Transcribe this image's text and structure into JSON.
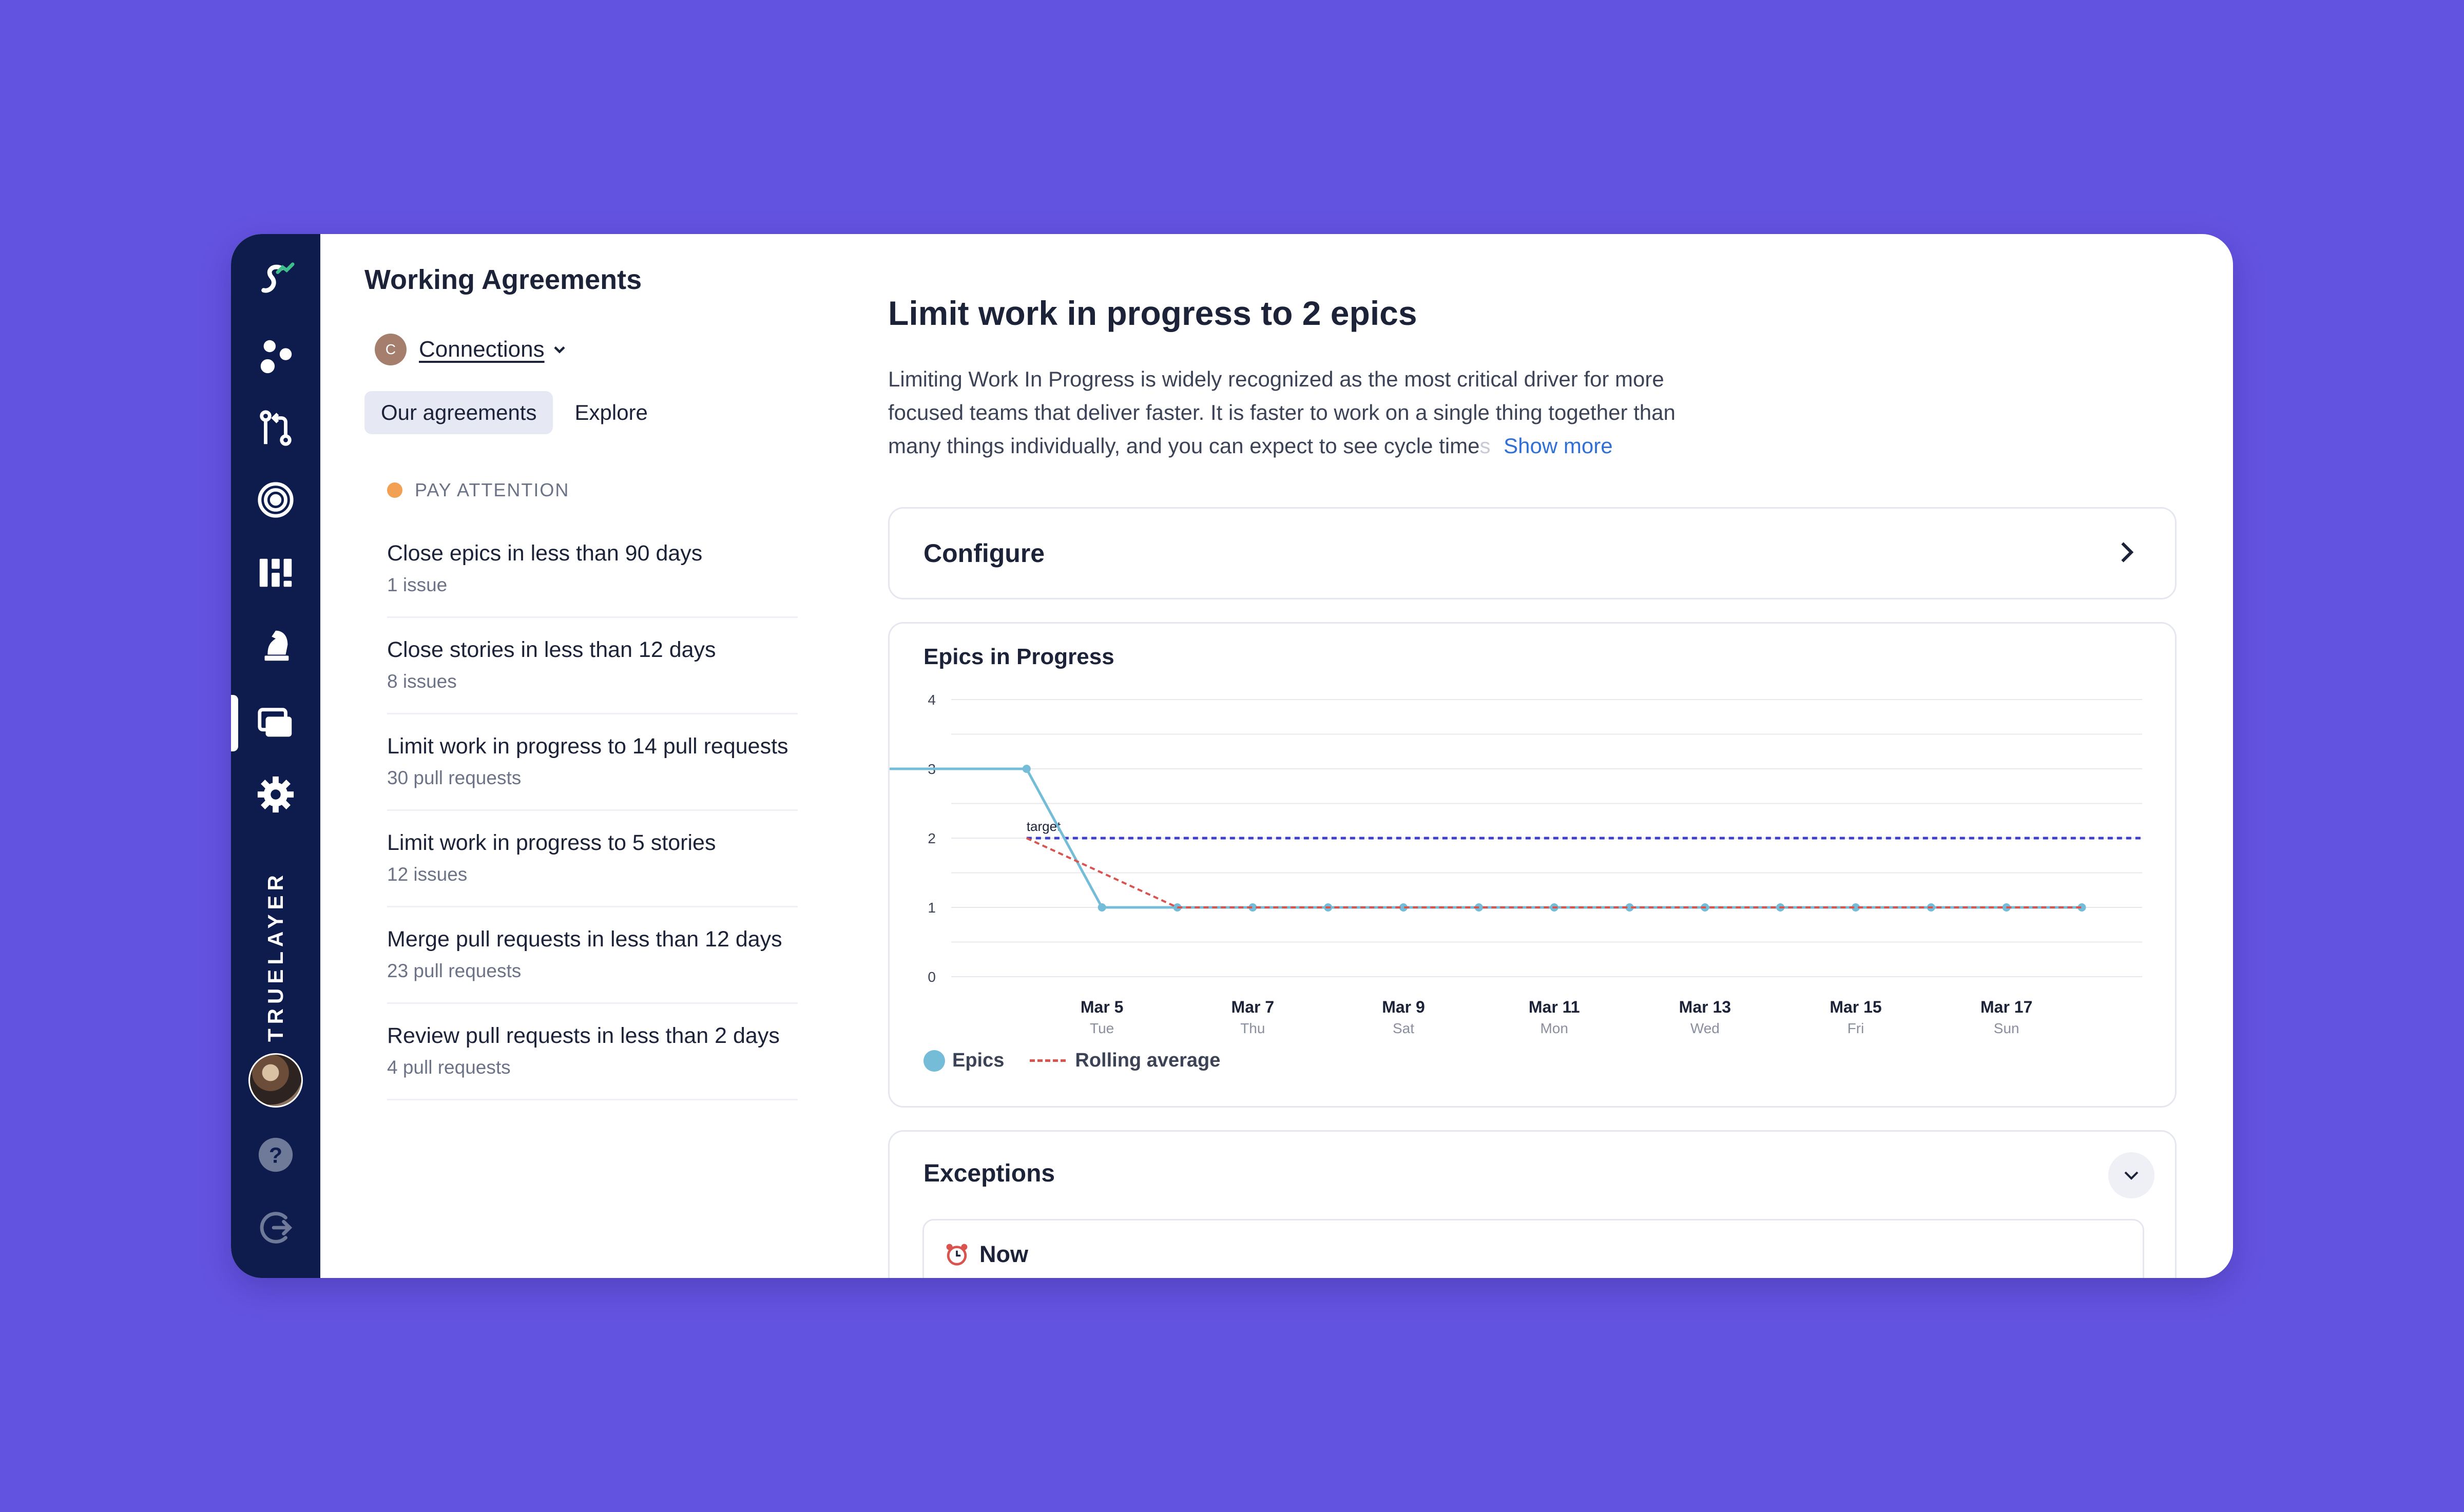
{
  "rail": {
    "brand": "TRUELAYER",
    "icons": [
      "logo-icon",
      "metrics-icon",
      "pull-request-icon",
      "target-icon",
      "board-icon",
      "chess-knight-icon",
      "working-agreements-icon",
      "gear-icon"
    ],
    "bottom_icons": [
      "help-icon",
      "logout-icon"
    ]
  },
  "list": {
    "title": "Working Agreements",
    "team_initial": "C",
    "team_name": "Connections",
    "tabs": [
      {
        "label": "Our agreements",
        "active": true
      },
      {
        "label": "Explore",
        "active": false
      }
    ],
    "section_label": "PAY ATTENTION",
    "items": [
      {
        "title": "Close epics in less than 90 days",
        "sub": "1 issue"
      },
      {
        "title": "Close stories in less than 12 days",
        "sub": "8 issues"
      },
      {
        "title": "Limit work in progress to 14 pull requests",
        "sub": "30 pull requests"
      },
      {
        "title": "Limit work in progress to 5 stories",
        "sub": "12 issues"
      },
      {
        "title": "Merge pull requests in less than 12 days",
        "sub": "23 pull requests"
      },
      {
        "title": "Review pull requests in less than 2 days",
        "sub": "4 pull requests"
      }
    ]
  },
  "main": {
    "title": "Limit work in progress to 2 epics",
    "desc_main": "Limiting Work In Progress is widely recognized as the most critical driver for more focused teams that deliver faster. It is faster to work on a single thing together than many things individually, and you can expect to see cycle time",
    "desc_fade": "s",
    "show_more": "Show more",
    "configure_label": "Configure",
    "exceptions_label": "Exceptions",
    "now_label": "Now"
  },
  "chart_data": {
    "type": "line",
    "title": "Epics in Progress",
    "ylim": [
      0,
      4
    ],
    "yticks": [
      0,
      1,
      2,
      3,
      4
    ],
    "x_tick_labels": [
      {
        "date": "Mar 5",
        "day": "Tue"
      },
      {
        "date": "Mar 7",
        "day": "Thu"
      },
      {
        "date": "Mar 9",
        "day": "Sat"
      },
      {
        "date": "Mar 11",
        "day": "Mon"
      },
      {
        "date": "Mar 13",
        "day": "Wed"
      },
      {
        "date": "Mar 15",
        "day": "Fri"
      },
      {
        "date": "Mar 17",
        "day": "Sun"
      }
    ],
    "x": [
      "Mar 4",
      "Mar 5",
      "Mar 6",
      "Mar 7",
      "Mar 8",
      "Mar 9",
      "Mar 10",
      "Mar 11",
      "Mar 12",
      "Mar 13",
      "Mar 14",
      "Mar 15",
      "Mar 16",
      "Mar 17",
      "Mar 18"
    ],
    "target": 2,
    "target_label": "target",
    "series": [
      {
        "name": "Epics",
        "color": "#74BCD8",
        "style": "solid",
        "values": [
          3,
          1,
          1,
          1,
          1,
          1,
          1,
          1,
          1,
          1,
          1,
          1,
          1,
          1,
          1
        ]
      },
      {
        "name": "Rolling average",
        "color": "#D9534F",
        "style": "dashed",
        "values": [
          2,
          1.5,
          1,
          1,
          1,
          1,
          1,
          1,
          1,
          1,
          1,
          1,
          1,
          1,
          1
        ]
      }
    ],
    "target_color": "#3B3FC9",
    "legend": "bottom-left"
  }
}
